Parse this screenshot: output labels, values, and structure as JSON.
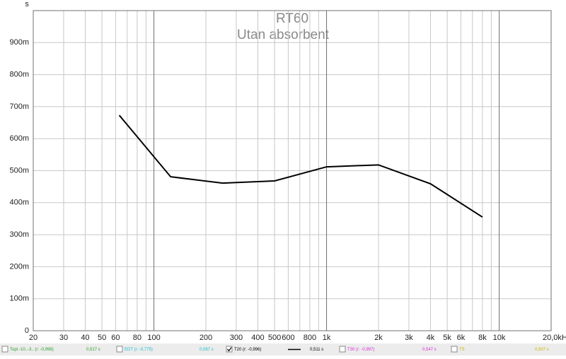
{
  "chart_data": {
    "type": "line",
    "title": "RT60",
    "subtitle": "Utan absorbent",
    "y_label": "s",
    "x": [
      63,
      125,
      250,
      500,
      1000,
      2000,
      4000,
      8000
    ],
    "series": [
      {
        "name": "T20 (r: -0,996)",
        "color": "#000000",
        "values": [
          0.673,
          0.481,
          0.461,
          0.468,
          0.512,
          0.518,
          0.459,
          0.355
        ]
      }
    ],
    "xlim": [
      20,
      20000
    ],
    "log_x": true,
    "xticks": [
      20,
      30,
      40,
      50,
      60,
      80,
      100,
      200,
      300,
      400,
      500,
      600,
      800,
      {
        "value": 1000,
        "label": "1k"
      },
      {
        "value": 2000,
        "label": "2k"
      },
      {
        "value": 3000,
        "label": "3k"
      },
      {
        "value": 4000,
        "label": "4k"
      },
      {
        "value": 5000,
        "label": "5k"
      },
      {
        "value": 6000,
        "label": "6k"
      },
      {
        "value": 8000,
        "label": "8k"
      },
      {
        "value": 10000,
        "label": "10k"
      },
      {
        "value": 20000,
        "label": "20,0kHz"
      }
    ],
    "xminorticks": [
      70,
      90,
      700,
      900,
      7000,
      9000
    ],
    "ylim": [
      0,
      1
    ],
    "yticks": [
      0,
      {
        "value": 0.1,
        "label": "100m"
      },
      {
        "value": 0.2,
        "label": "200m"
      },
      {
        "value": 0.3,
        "label": "300m"
      },
      {
        "value": 0.4,
        "label": "400m"
      },
      {
        "value": 0.5,
        "label": "500m"
      },
      {
        "value": 0.6,
        "label": "600m"
      },
      {
        "value": 0.7,
        "label": "700m"
      },
      {
        "value": 0.8,
        "label": "800m"
      },
      {
        "value": 0.9,
        "label": "900m"
      }
    ],
    "grid": true
  },
  "status_bar": {
    "items": [
      {
        "label": "Topt -10..-3.. (r: -0,998)",
        "value": "0,517 s",
        "color": "#2ca02c",
        "checked": false
      },
      {
        "label": "EDT (r: -0,775)",
        "value": "0,087 s",
        "color": "#17becf",
        "checked": false
      },
      {
        "value": "0,511 s",
        "color": "#000000",
        "checked": true
      },
      {
        "label": "T30 (r: -0,997)",
        "value": "0,547 s",
        "color": "#d62fd6",
        "checked": false
      },
      {
        "label": "TS",
        "value": "0,507 s",
        "color": "#c8b400",
        "checked": false
      }
    ]
  }
}
